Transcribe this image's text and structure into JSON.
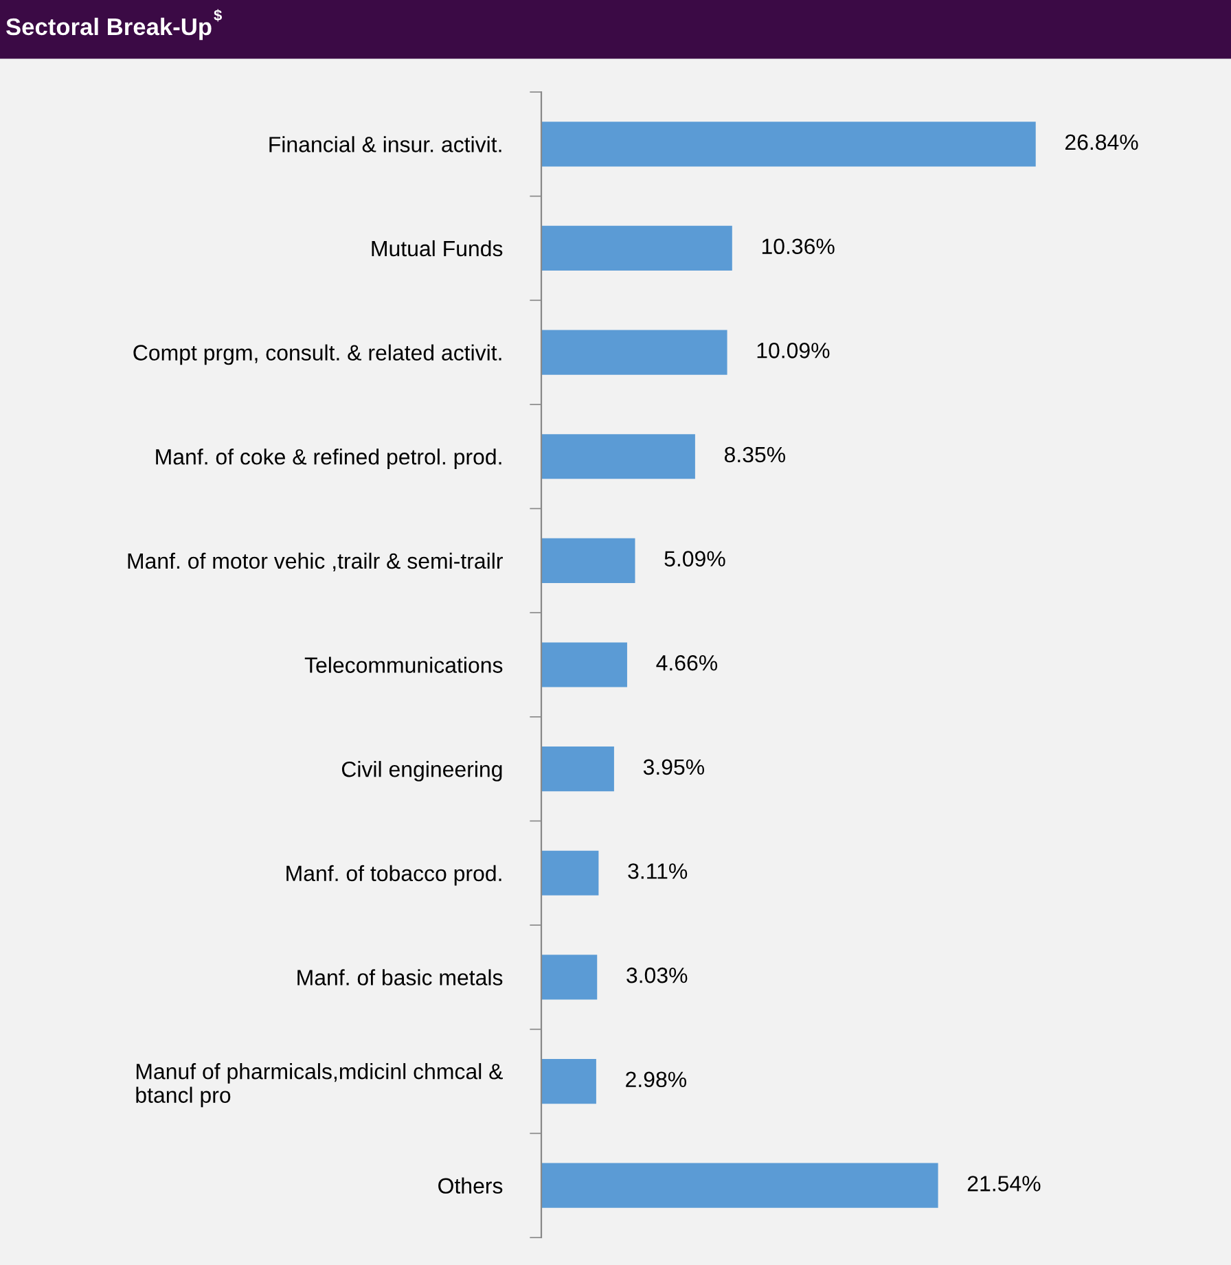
{
  "chart_data": {
    "type": "bar",
    "orientation": "horizontal",
    "title": "Sectoral Break-Up$^{$}$",
    "categories": [
      "Financial & insur. activit.",
      "Mutual Funds",
      "Compt prgm, consult. & related activit.",
      "Manf. of coke & refined petrol. prod.",
      "Manf. of motor vehic ,trailr & semi-trailr",
      "Telecommunications",
      "Civil engineering",
      "Manf. of tobacco prod.",
      "Manf. of basic metals",
      "Manuf of pharmicals,mdicinl chmcal &\nbtancl pro",
      "Others"
    ],
    "values": [
      26.84,
      10.36,
      10.09,
      8.35,
      5.09,
      4.66,
      3.95,
      3.11,
      3.03,
      2.98,
      21.54
    ],
    "value_labels": [
      "26.84%",
      "10.36%",
      "10.09%",
      "8.35%",
      "5.09%",
      "4.66%",
      "3.95%",
      "3.11%",
      "3.03%",
      "2.98%",
      "21.54%"
    ],
    "color": "#5b9bd5",
    "grid": false,
    "legend": false,
    "tick_labels": "y"
  }
}
